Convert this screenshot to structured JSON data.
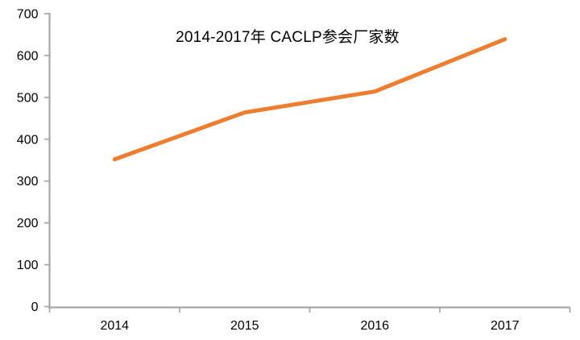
{
  "chart_data": {
    "type": "line",
    "title": "2014-2017年 CACLP参会厂家数",
    "categories": [
      "2014",
      "2015",
      "2016",
      "2017"
    ],
    "series": [
      {
        "name": "CACLP参会厂家数",
        "values": [
          352,
          464,
          514,
          639
        ]
      }
    ],
    "xlabel": "",
    "ylabel": "",
    "ylim": [
      0,
      700
    ],
    "ytick_step": 100,
    "yticks": [
      0,
      100,
      200,
      300,
      400,
      500,
      600,
      700
    ],
    "grid": false,
    "legend_position": "none",
    "line_color": "#ED7D31",
    "axis_color": "#A6A6A6",
    "text_color": "#000000",
    "background_color": "#FFFFFF"
  }
}
